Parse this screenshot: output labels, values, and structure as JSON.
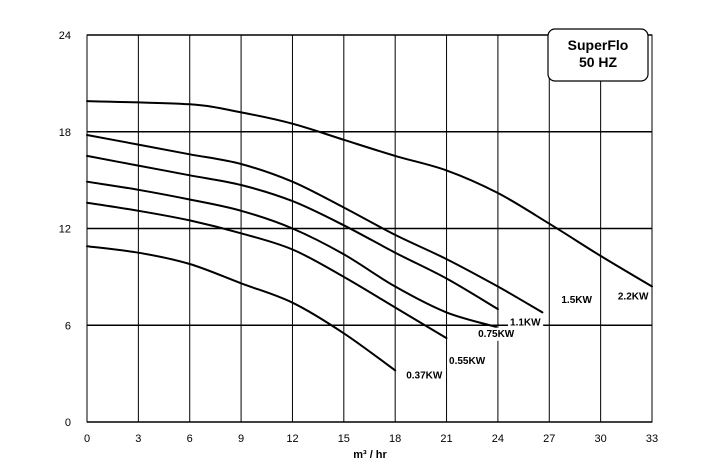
{
  "chart_data": {
    "type": "line",
    "title_box": [
      "SuperFlo",
      "50 HZ"
    ],
    "xlabel": "m³ / hr",
    "ylabel": "",
    "xlim": [
      0,
      33
    ],
    "ylim": [
      0,
      24
    ],
    "x_ticks": [
      "0",
      "3",
      "6",
      "9",
      "12",
      "15",
      "18",
      "21",
      "24",
      "27",
      "30",
      "33"
    ],
    "y_ticks": [
      "0",
      "6",
      "12",
      "18",
      "24"
    ],
    "grid": true,
    "series": [
      {
        "name": "2.2KW",
        "points": [
          [
            0,
            19.9
          ],
          [
            6,
            19.7
          ],
          [
            9,
            19.2
          ],
          [
            12,
            18.5
          ],
          [
            15,
            17.5
          ],
          [
            18,
            16.5
          ],
          [
            21,
            15.6
          ],
          [
            24,
            14.2
          ],
          [
            27,
            12.3
          ],
          [
            30,
            10.3
          ],
          [
            33,
            8.4
          ]
        ]
      },
      {
        "name": "1.5KW",
        "points": [
          [
            0,
            17.8
          ],
          [
            3,
            17.2
          ],
          [
            6,
            16.6
          ],
          [
            9,
            16.0
          ],
          [
            12,
            14.9
          ],
          [
            15,
            13.3
          ],
          [
            18,
            11.6
          ],
          [
            21,
            10.1
          ],
          [
            24,
            8.4
          ],
          [
            26.6,
            6.8
          ]
        ]
      },
      {
        "name": "1.1KW",
        "points": [
          [
            0,
            16.5
          ],
          [
            3,
            15.9
          ],
          [
            6,
            15.3
          ],
          [
            9,
            14.7
          ],
          [
            12,
            13.7
          ],
          [
            15,
            12.2
          ],
          [
            18,
            10.5
          ],
          [
            21,
            8.9
          ],
          [
            24,
            7.0
          ]
        ]
      },
      {
        "name": "0.75KW",
        "points": [
          [
            0,
            14.9
          ],
          [
            3,
            14.4
          ],
          [
            6,
            13.8
          ],
          [
            9,
            13.1
          ],
          [
            12,
            12.0
          ],
          [
            15,
            10.4
          ],
          [
            18,
            8.4
          ],
          [
            21,
            6.8
          ],
          [
            23.9,
            5.9
          ]
        ]
      },
      {
        "name": "0.55KW",
        "points": [
          [
            0,
            13.6
          ],
          [
            3,
            13.1
          ],
          [
            6,
            12.5
          ],
          [
            9,
            11.7
          ],
          [
            12,
            10.7
          ],
          [
            15,
            9.0
          ],
          [
            18,
            7.1
          ],
          [
            21,
            5.2
          ]
        ]
      },
      {
        "name": "0.37KW",
        "points": [
          [
            0,
            10.9
          ],
          [
            3,
            10.5
          ],
          [
            6,
            9.8
          ],
          [
            9,
            8.6
          ],
          [
            12,
            7.4
          ],
          [
            15,
            5.5
          ],
          [
            18,
            3.2
          ]
        ]
      }
    ],
    "curve_labels": [
      {
        "text": "2.2KW",
        "x": 31.9,
        "y": 7.8
      },
      {
        "text": "1.5KW",
        "x": 28.6,
        "y": 7.6
      },
      {
        "text": "1.1KW",
        "x": 25.6,
        "y": 6.2
      },
      {
        "text": "0.75KW",
        "x": 23.9,
        "y": 5.5
      },
      {
        "text": "0.55KW",
        "x": 22.2,
        "y": 3.8
      },
      {
        "text": "0.37KW",
        "x": 19.7,
        "y": 2.9
      }
    ]
  }
}
